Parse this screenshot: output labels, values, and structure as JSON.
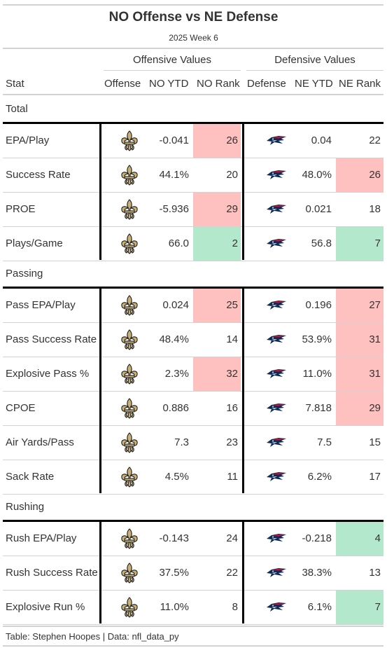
{
  "title": "NO Offense vs NE Defense",
  "subtitle": "2025 Week 6",
  "spanners": {
    "offense": "Offensive Values",
    "defense": "Defensive Values"
  },
  "columns": [
    "Stat",
    "Offense",
    "NO YTD",
    "NO Rank",
    "Defense",
    "NE YTD",
    "NE Rank"
  ],
  "icons": {
    "offense": "saints-fleur-de-lis-logo-icon",
    "defense": "patriots-logo-icon"
  },
  "colors": {
    "bad": "#ffc0c0",
    "good": "#b4e8cc",
    "saints_gold": "#c9b074",
    "patriots_navy": "#0b2a57",
    "patriots_red": "#c8102e"
  },
  "groups": [
    {
      "name": "Total",
      "rows": [
        {
          "stat": "EPA/Play",
          "no_ytd": "-0.041",
          "no_rank": "26",
          "no_rank_color": "bad",
          "ne_ytd": "0.04",
          "ne_rank": "22",
          "ne_rank_color": ""
        },
        {
          "stat": "Success Rate",
          "no_ytd": "44.1%",
          "no_rank": "20",
          "no_rank_color": "",
          "ne_ytd": "48.0%",
          "ne_rank": "26",
          "ne_rank_color": "bad"
        },
        {
          "stat": "PROE",
          "no_ytd": "-5.936",
          "no_rank": "29",
          "no_rank_color": "bad",
          "ne_ytd": "0.021",
          "ne_rank": "18",
          "ne_rank_color": ""
        },
        {
          "stat": "Plays/Game",
          "no_ytd": "66.0",
          "no_rank": "2",
          "no_rank_color": "good",
          "ne_ytd": "56.8",
          "ne_rank": "7",
          "ne_rank_color": "good"
        }
      ]
    },
    {
      "name": "Passing",
      "rows": [
        {
          "stat": "Pass EPA/Play",
          "no_ytd": "0.024",
          "no_rank": "25",
          "no_rank_color": "bad",
          "ne_ytd": "0.196",
          "ne_rank": "27",
          "ne_rank_color": "bad"
        },
        {
          "stat": "Pass Success Rate",
          "no_ytd": "48.4%",
          "no_rank": "14",
          "no_rank_color": "",
          "ne_ytd": "53.9%",
          "ne_rank": "31",
          "ne_rank_color": "bad"
        },
        {
          "stat": "Explosive Pass %",
          "no_ytd": "2.3%",
          "no_rank": "32",
          "no_rank_color": "bad",
          "ne_ytd": "11.0%",
          "ne_rank": "31",
          "ne_rank_color": "bad"
        },
        {
          "stat": "CPOE",
          "no_ytd": "0.886",
          "no_rank": "16",
          "no_rank_color": "",
          "ne_ytd": "7.818",
          "ne_rank": "29",
          "ne_rank_color": "bad"
        },
        {
          "stat": "Air Yards/Pass",
          "no_ytd": "7.3",
          "no_rank": "23",
          "no_rank_color": "",
          "ne_ytd": "7.5",
          "ne_rank": "15",
          "ne_rank_color": ""
        },
        {
          "stat": "Sack Rate",
          "no_ytd": "4.5%",
          "no_rank": "11",
          "no_rank_color": "",
          "ne_ytd": "6.2%",
          "ne_rank": "17",
          "ne_rank_color": ""
        }
      ]
    },
    {
      "name": "Rushing",
      "rows": [
        {
          "stat": "Rush EPA/Play",
          "no_ytd": "-0.143",
          "no_rank": "24",
          "no_rank_color": "",
          "ne_ytd": "-0.218",
          "ne_rank": "4",
          "ne_rank_color": "good"
        },
        {
          "stat": "Rush Success Rate",
          "no_ytd": "37.5%",
          "no_rank": "22",
          "no_rank_color": "",
          "ne_ytd": "38.3%",
          "ne_rank": "13",
          "ne_rank_color": ""
        },
        {
          "stat": "Explosive Run %",
          "no_ytd": "11.0%",
          "no_rank": "8",
          "no_rank_color": "",
          "ne_ytd": "6.1%",
          "ne_rank": "7",
          "ne_rank_color": "good"
        }
      ]
    }
  ],
  "footer": "Table: Stephen Hoopes | Data: nfl_data_py"
}
